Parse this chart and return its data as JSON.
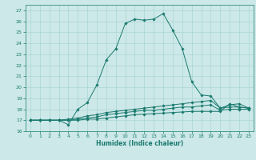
{
  "xlabel": "Humidex (Indice chaleur)",
  "background_color": "#cce8e8",
  "line_color": "#1a7a6e",
  "grid_color": "#aad4d4",
  "xlim": [
    -0.5,
    23.5
  ],
  "ylim": [
    16,
    27.5
  ],
  "xticks": [
    0,
    1,
    2,
    3,
    4,
    5,
    6,
    7,
    8,
    9,
    10,
    11,
    12,
    13,
    14,
    15,
    16,
    17,
    18,
    19,
    20,
    21,
    22,
    23
  ],
  "yticks": [
    16,
    17,
    18,
    19,
    20,
    21,
    22,
    23,
    24,
    25,
    26,
    27
  ],
  "lines": [
    {
      "x": [
        0,
        1,
        2,
        3,
        4,
        5,
        6,
        7,
        8,
        9,
        10,
        11,
        12,
        13,
        14,
        15,
        16,
        17,
        18,
        19,
        20,
        21,
        22,
        23
      ],
      "y": [
        17,
        17,
        17,
        17,
        16.6,
        18.0,
        18.6,
        20.2,
        22.5,
        23.5,
        25.8,
        26.2,
        26.1,
        26.2,
        26.7,
        25.2,
        23.5,
        20.5,
        19.3,
        19.2,
        18.1,
        18.4,
        18.5,
        18.1
      ]
    },
    {
      "x": [
        0,
        1,
        2,
        3,
        4,
        5,
        6,
        7,
        8,
        9,
        10,
        11,
        12,
        13,
        14,
        15,
        16,
        17,
        18,
        19,
        20,
        21,
        22,
        23
      ],
      "y": [
        17,
        17,
        17,
        17,
        17.1,
        17.2,
        17.4,
        17.5,
        17.7,
        17.8,
        17.9,
        18.0,
        18.1,
        18.2,
        18.3,
        18.4,
        18.5,
        18.6,
        18.7,
        18.8,
        18.1,
        18.2,
        18.2,
        18.1
      ]
    },
    {
      "x": [
        0,
        1,
        2,
        3,
        4,
        5,
        6,
        7,
        8,
        9,
        10,
        11,
        12,
        13,
        14,
        15,
        16,
        17,
        18,
        19,
        20,
        21,
        22,
        23
      ],
      "y": [
        17,
        17,
        17,
        17,
        17.0,
        17.1,
        17.2,
        17.3,
        17.5,
        17.6,
        17.7,
        17.8,
        17.9,
        17.9,
        18.0,
        18.1,
        18.2,
        18.2,
        18.3,
        18.4,
        17.9,
        18.0,
        18.0,
        18.0
      ]
    },
    {
      "x": [
        0,
        1,
        2,
        3,
        4,
        5,
        6,
        7,
        8,
        9,
        10,
        11,
        12,
        13,
        14,
        15,
        16,
        17,
        18,
        19,
        20,
        21,
        22,
        23
      ],
      "y": [
        17,
        17,
        17,
        17,
        17.0,
        17.0,
        17.1,
        17.1,
        17.2,
        17.3,
        17.4,
        17.5,
        17.55,
        17.6,
        17.65,
        17.7,
        17.75,
        17.8,
        17.8,
        17.8,
        17.8,
        18.5,
        18.2,
        18.1
      ]
    }
  ]
}
